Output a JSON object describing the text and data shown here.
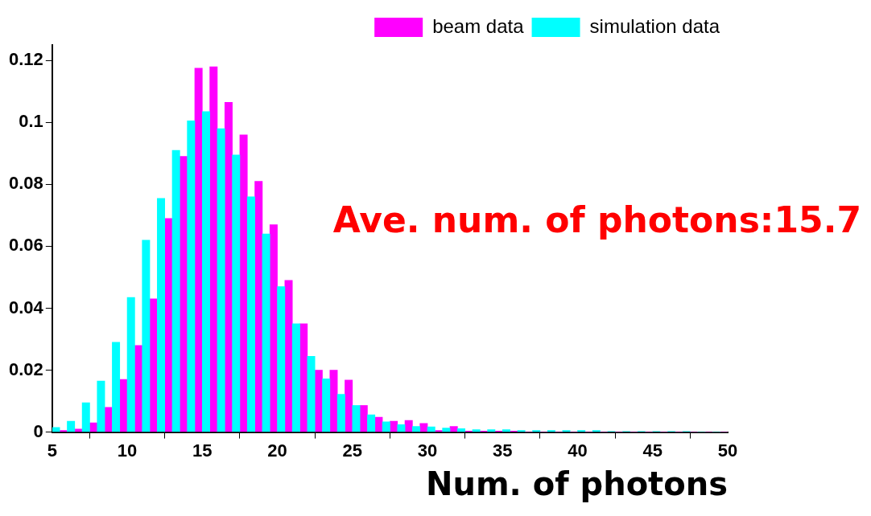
{
  "chart_data": {
    "type": "histogram",
    "xlabel": "Num. of photons",
    "annotations": [
      "Ave. num. of photons:15.7"
    ],
    "bins": [
      5,
      6,
      7,
      8,
      9,
      10,
      11,
      12,
      13,
      14,
      15,
      16,
      17,
      18,
      19,
      20,
      21,
      22,
      23,
      24,
      25,
      26,
      27,
      28,
      29,
      30,
      31,
      32,
      33,
      34,
      35,
      36,
      37,
      38,
      39,
      40,
      41,
      42,
      43,
      44,
      45,
      46,
      47,
      48,
      49,
      50
    ],
    "series": [
      {
        "name": "beam data",
        "color": "#ff00ff",
        "values": [
          0.0005,
          0.001,
          0.003,
          0.008,
          0.017,
          0.028,
          0.043,
          0.069,
          0.089,
          0.1175,
          0.118,
          0.1065,
          0.096,
          0.081,
          0.067,
          0.049,
          0.035,
          0.02,
          0.02,
          0.0168,
          0.0086,
          0.0048,
          0.0035,
          0.0038,
          0.0028,
          0.0005,
          0.0018,
          0.0003,
          0.0003,
          0.0003,
          0.0003,
          0,
          0,
          0,
          0,
          0,
          0,
          0,
          0,
          0,
          0,
          0,
          0,
          0,
          0
        ]
      },
      {
        "name": "simulation data",
        "color": "#00ffff",
        "values": [
          0.0015,
          0.0035,
          0.0095,
          0.0165,
          0.029,
          0.0435,
          0.062,
          0.0755,
          0.091,
          0.1005,
          0.1035,
          0.098,
          0.0895,
          0.076,
          0.064,
          0.047,
          0.035,
          0.0245,
          0.0172,
          0.0122,
          0.0086,
          0.0056,
          0.0033,
          0.0024,
          0.0018,
          0.0017,
          0.0013,
          0.0011,
          0.0008,
          0.0008,
          0.0008,
          0.0005,
          0.0005,
          0.0005,
          0.0005,
          0.0005,
          0.0005,
          0.0002,
          0.0002,
          0.0002,
          0.0002,
          0.0002,
          0.0002,
          0,
          0
        ]
      }
    ],
    "xlim": [
      5,
      50
    ],
    "xticks": [
      5,
      10,
      15,
      20,
      25,
      30,
      35,
      40,
      45,
      50
    ],
    "ylim": [
      0,
      0.125
    ],
    "yticks": [
      0,
      0.02,
      0.04,
      0.06,
      0.08,
      0.1,
      0.12
    ],
    "legend": "top right",
    "grid": false
  }
}
